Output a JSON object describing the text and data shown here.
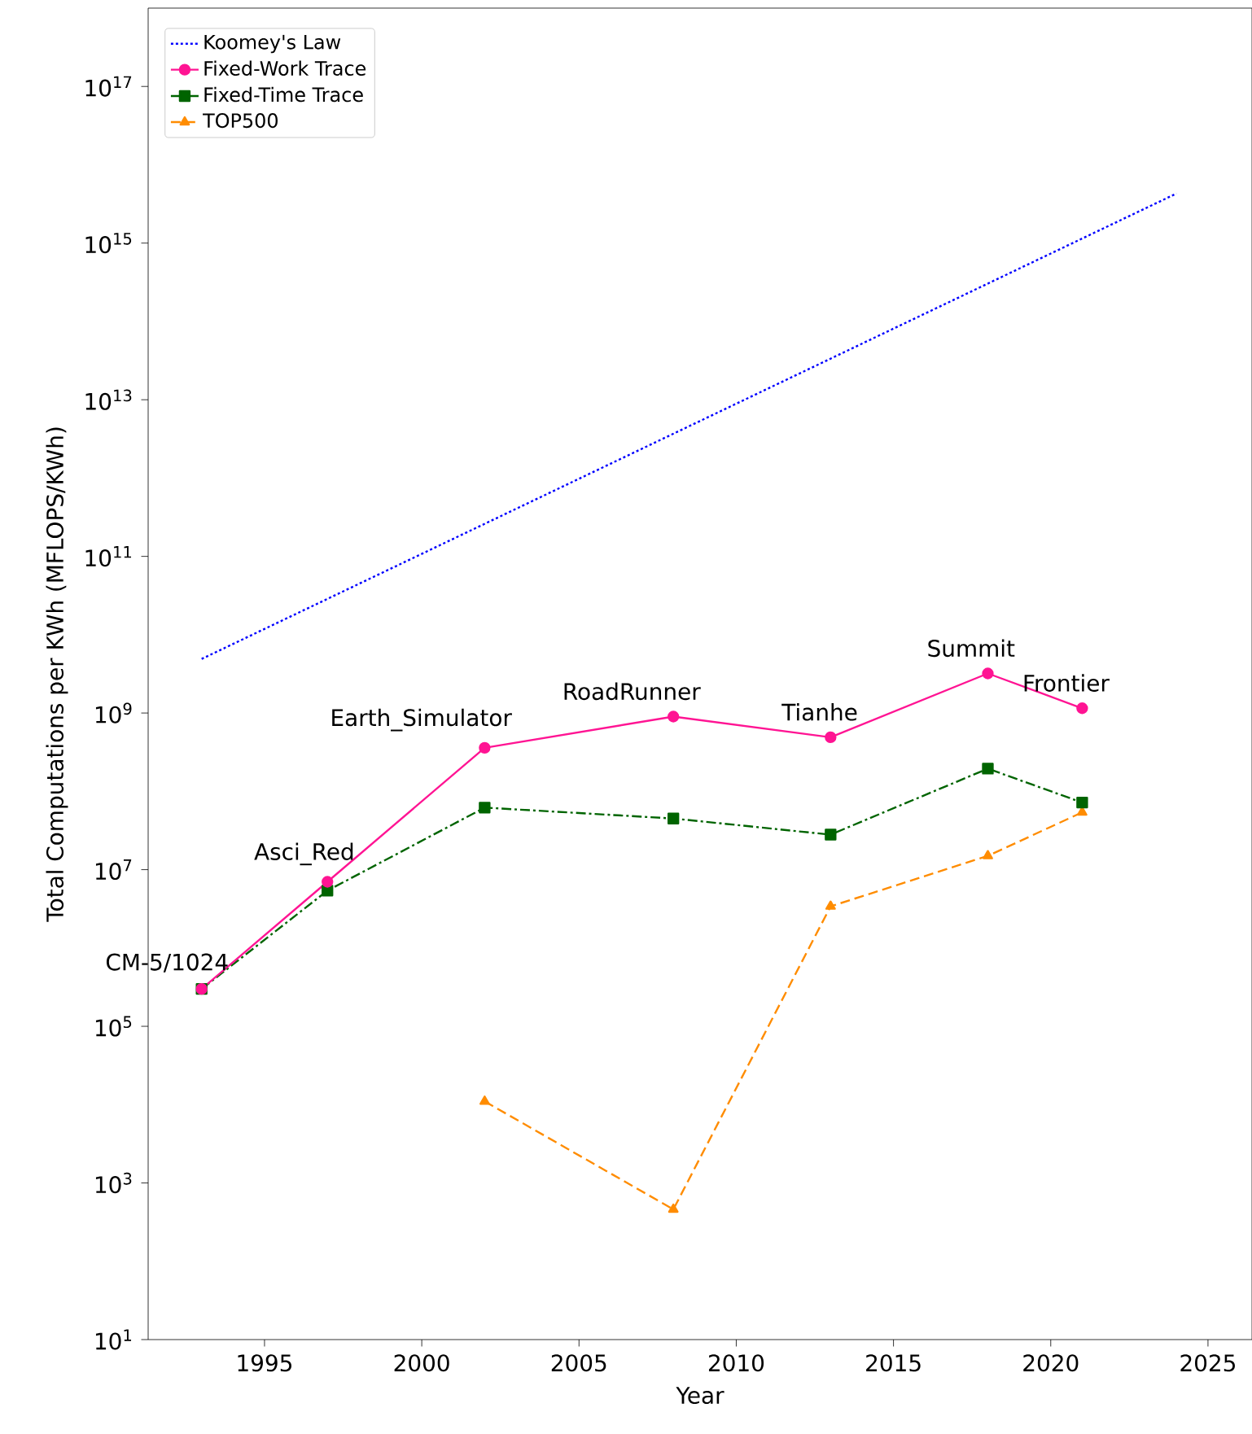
{
  "chart_data": {
    "type": "line",
    "xlabel": "Year",
    "ylabel": "Total Computations per KWh (MFLOPS/KWh)",
    "log": "y",
    "grid": false,
    "legend": "top left",
    "xlim": [
      1991.3,
      2026.4
    ],
    "xticks": [
      1995,
      2000,
      2005,
      2010,
      2015,
      2020,
      2025
    ],
    "ylim": [
      10,
      1e+18
    ],
    "yticks": [
      {
        "value": 10,
        "label": "10$^{1}$"
      },
      {
        "value": 1000,
        "label": "10$^{3}$"
      },
      {
        "value": 100000,
        "label": "10$^{5}$"
      },
      {
        "value": 10000000,
        "label": "10$^{7}$"
      },
      {
        "value": 1000000000,
        "label": "10$^{9}$"
      },
      {
        "value": 100000000000,
        "label": "10$^{11}$"
      },
      {
        "value": 10000000000000,
        "label": "10$^{13}$"
      },
      {
        "value": 1000000000000000,
        "label": "10$^{15}$"
      },
      {
        "value": 100000000000000000,
        "label": "10$^{17}$"
      }
    ],
    "series": [
      {
        "name": "Koomey's Law",
        "color": "#0000ff",
        "line_style": "dotted",
        "marker": "none",
        "x": [
          1993,
          2024
        ],
        "values": [
          4900000000.0,
          4300000000000000.0
        ]
      },
      {
        "name": "Fixed-Work Trace",
        "color": "#ff1493",
        "line_style": "solid",
        "marker": "circle",
        "x": [
          1993,
          1997,
          2002,
          2008,
          2013,
          2018,
          2021
        ],
        "values": [
          300000.0,
          7000000.0,
          360000000.0,
          900000000.0,
          490000000.0,
          3200000000.0,
          1150000000.0
        ]
      },
      {
        "name": "Fixed-Time Trace",
        "color": "#006400",
        "line_style": "dashdot",
        "marker": "square",
        "x": [
          1993,
          1997,
          2002,
          2008,
          2013,
          2018,
          2021
        ],
        "values": [
          300000.0,
          5400000.0,
          62000000.0,
          45000000.0,
          28000000.0,
          195000000.0,
          72000000.0
        ]
      },
      {
        "name": "TOP500",
        "color": "#ff8c00",
        "line_style": "dashed",
        "marker": "triangle",
        "x": [
          2002,
          2008,
          2013,
          2018,
          2021
        ],
        "values": [
          11000.0,
          460,
          3400000.0,
          15000000.0,
          54000000.0
        ]
      }
    ],
    "annotations": [
      {
        "text": "CM-5/1024",
        "x": 1993,
        "y": 300000.0
      },
      {
        "text": "Asci_Red",
        "x": 1997,
        "y": 7000000.0
      },
      {
        "text": "Earth_Simulator",
        "x": 2002,
        "y": 360000000.0
      },
      {
        "text": "RoadRunner",
        "x": 2008,
        "y": 900000000.0
      },
      {
        "text": "Tianhe",
        "x": 2013,
        "y": 490000000.0
      },
      {
        "text": "Summit",
        "x": 2018,
        "y": 3200000000.0
      },
      {
        "text": "Frontier",
        "x": 2021,
        "y": 1150000000.0
      }
    ]
  }
}
